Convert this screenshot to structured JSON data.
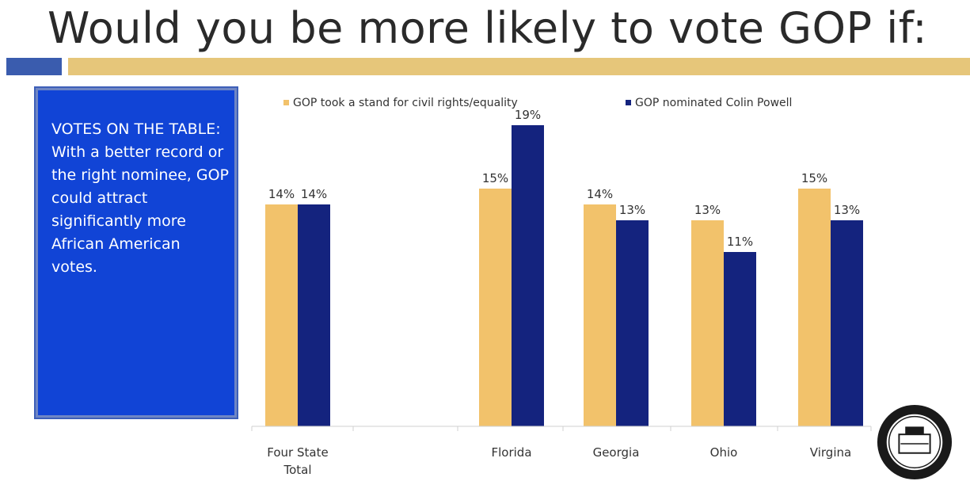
{
  "title": "Would you be more likely to vote GOP if:",
  "callout": "VOTES ON THE TABLE: With a better record or the right nominee, GOP could attract significantly more African American votes.",
  "colors": {
    "gold": "#f2c26b",
    "navy": "#14237e",
    "accent_blue": "#3a5cae",
    "accent_gold": "#e6c67a",
    "callout_bg": "#1144d6"
  },
  "seal_icon": "naacp-seal-icon",
  "chart_data": {
    "type": "bar",
    "categories": [
      "Four State Total",
      "Florida",
      "Georgia",
      "Ohio",
      "Virgina"
    ],
    "category_lines": [
      [
        "Four State",
        "Total"
      ],
      [
        "Florida"
      ],
      [
        "Georgia"
      ],
      [
        "Ohio"
      ],
      [
        "Virgina"
      ]
    ],
    "series": [
      {
        "name": "GOP took a stand for civil rights/equality",
        "values": [
          14,
          15,
          14,
          13,
          15
        ],
        "labels": [
          "14%",
          "15%",
          "14%",
          "13%",
          "15%"
        ],
        "color": "#f2c26b"
      },
      {
        "name": "GOP nominated Colin Powell",
        "values": [
          14,
          19,
          13,
          11,
          13
        ],
        "labels": [
          "14%",
          "19%",
          "13%",
          "11%",
          "13%"
        ],
        "color": "#14237e"
      }
    ],
    "ylim": [
      0,
      20
    ],
    "legend": "top",
    "grid": false
  }
}
